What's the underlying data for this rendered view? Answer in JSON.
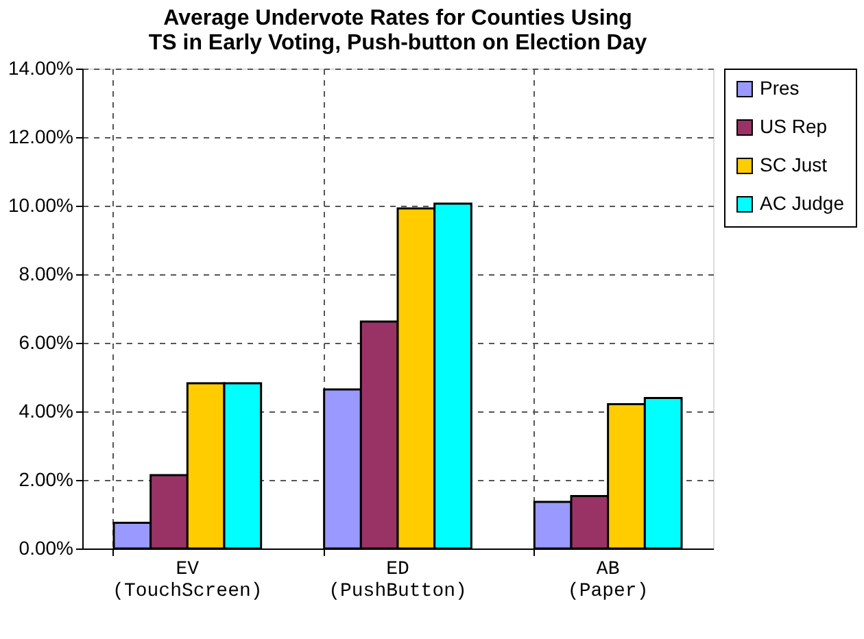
{
  "chart_data": {
    "type": "bar",
    "title": "Average Undervote Rates for Counties Using\nTS in Early Voting, Push-button on Election Day",
    "categories": [
      "EV\n(TouchScreen)",
      "ED\n(PushButton)",
      "AB\n(Paper)"
    ],
    "series": [
      {
        "name": "Pres",
        "color": "#9999ff",
        "values": [
          0.75,
          4.64,
          1.36
        ]
      },
      {
        "name": "US Rep",
        "color": "#993366",
        "values": [
          2.14,
          6.62,
          1.53
        ]
      },
      {
        "name": "SC Just",
        "color": "#ffcc00",
        "values": [
          4.82,
          9.92,
          4.21
        ]
      },
      {
        "name": "AC Judge",
        "color": "#00ffff",
        "values": [
          4.82,
          10.06,
          4.39
        ]
      }
    ],
    "ylim": [
      0,
      14
    ],
    "yticks": [
      {
        "value": 0,
        "label": "0.00%"
      },
      {
        "value": 2,
        "label": "2.00%"
      },
      {
        "value": 4,
        "label": "4.00%"
      },
      {
        "value": 6,
        "label": "6.00%"
      },
      {
        "value": 8,
        "label": "8.00%"
      },
      {
        "value": 10,
        "label": "10.00%"
      },
      {
        "value": 12,
        "label": "12.00%"
      },
      {
        "value": 14,
        "label": "14.00%"
      }
    ],
    "grid": true,
    "legend": "right"
  }
}
